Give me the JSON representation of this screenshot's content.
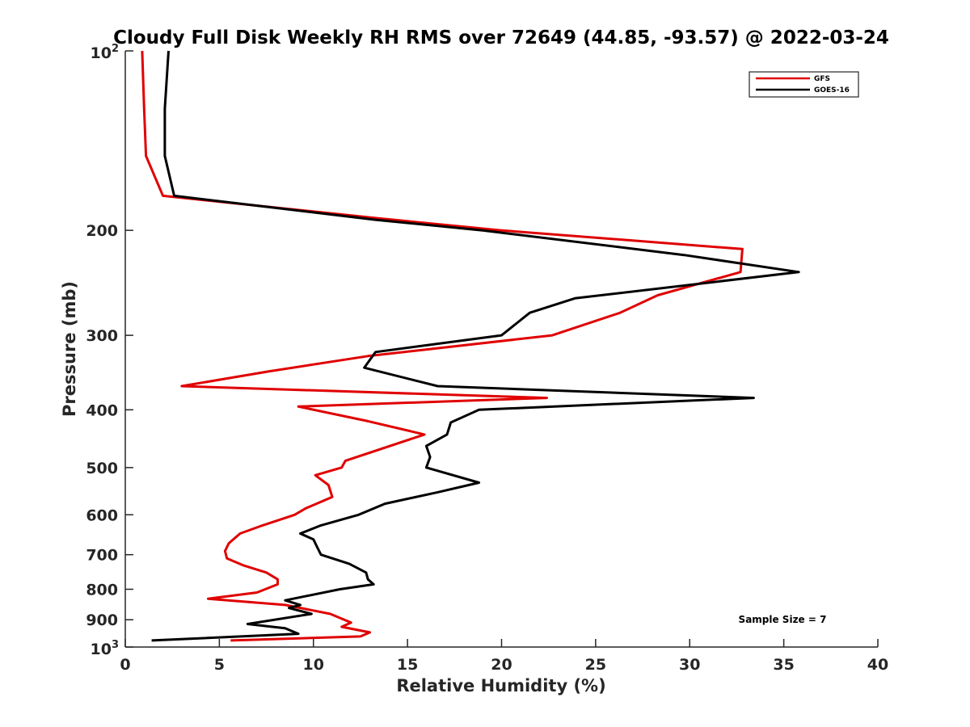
{
  "chart_data": {
    "type": "line",
    "title": "Cloudy Full Disk Weekly RH RMS over 72649 (44.85, -93.57) @ 2022-03-24",
    "xlabel": "Relative Humidity (%)",
    "ylabel": "Pressure (mb)",
    "xlim": [
      0,
      40
    ],
    "ylim": [
      100,
      1000
    ],
    "y_scale": "log",
    "y_reversed": true,
    "grid": false,
    "legend_position": "top-right",
    "x_ticks": [
      "0",
      "5",
      "10",
      "15",
      "20",
      "25",
      "30",
      "35",
      "40"
    ],
    "y_ticks": [
      {
        "value": 100,
        "base": "10",
        "exp": "2"
      },
      {
        "value": 200,
        "label": "200"
      },
      {
        "value": 300,
        "label": "300"
      },
      {
        "value": 400,
        "label": "400"
      },
      {
        "value": 500,
        "label": "500"
      },
      {
        "value": 600,
        "label": "600"
      },
      {
        "value": 700,
        "label": "700"
      },
      {
        "value": 800,
        "label": "800"
      },
      {
        "value": 900,
        "label": "900"
      },
      {
        "value": 1000,
        "base": "10",
        "exp": "3"
      }
    ],
    "annotation": "Sample Size = 7",
    "series": [
      {
        "name": "GFS",
        "color": "#e00000",
        "points": [
          [
            0.9,
            100
          ],
          [
            1.0,
            125
          ],
          [
            1.1,
            150
          ],
          [
            2.0,
            175
          ],
          [
            13.5,
            191
          ],
          [
            20.0,
            200
          ],
          [
            32.8,
            215
          ],
          [
            32.7,
            235
          ],
          [
            28.3,
            257
          ],
          [
            26.3,
            275
          ],
          [
            22.7,
            300
          ],
          [
            12.9,
            325
          ],
          [
            7.6,
            345
          ],
          [
            3.0,
            365
          ],
          [
            22.4,
            382
          ],
          [
            9.2,
            395
          ],
          [
            12.9,
            418
          ],
          [
            15.9,
            440
          ],
          [
            11.7,
            487
          ],
          [
            11.5,
            500
          ],
          [
            10.1,
            515
          ],
          [
            10.8,
            535
          ],
          [
            11.0,
            560
          ],
          [
            9.6,
            585
          ],
          [
            9.0,
            600
          ],
          [
            7.3,
            625
          ],
          [
            6.1,
            645
          ],
          [
            5.5,
            670
          ],
          [
            5.3,
            690
          ],
          [
            5.4,
            710
          ],
          [
            6.3,
            730
          ],
          [
            7.5,
            750
          ],
          [
            8.1,
            770
          ],
          [
            8.1,
            785
          ],
          [
            7.0,
            810
          ],
          [
            4.4,
            830
          ],
          [
            8.5,
            850
          ],
          [
            10.9,
            880
          ],
          [
            12.0,
            910
          ],
          [
            11.5,
            925
          ],
          [
            13.0,
            945
          ],
          [
            12.5,
            960
          ],
          [
            5.6,
            975
          ]
        ]
      },
      {
        "name": "GOES-16",
        "color": "#000000",
        "points": [
          [
            2.3,
            100
          ],
          [
            2.1,
            125
          ],
          [
            2.1,
            150
          ],
          [
            2.6,
            175
          ],
          [
            13.3,
            192
          ],
          [
            19.0,
            200
          ],
          [
            29.7,
            220
          ],
          [
            35.8,
            235
          ],
          [
            23.9,
            260
          ],
          [
            21.5,
            275
          ],
          [
            20.0,
            300
          ],
          [
            13.3,
            320
          ],
          [
            12.7,
            340
          ],
          [
            16.6,
            365
          ],
          [
            33.4,
            382
          ],
          [
            18.8,
            400
          ],
          [
            17.3,
            420
          ],
          [
            17.1,
            440
          ],
          [
            16.0,
            460
          ],
          [
            16.2,
            480
          ],
          [
            16.0,
            500
          ],
          [
            18.8,
            530
          ],
          [
            16.6,
            550
          ],
          [
            13.8,
            575
          ],
          [
            12.4,
            600
          ],
          [
            10.4,
            625
          ],
          [
            9.3,
            645
          ],
          [
            10.0,
            660
          ],
          [
            10.2,
            680
          ],
          [
            10.4,
            700
          ],
          [
            11.9,
            725
          ],
          [
            12.8,
            750
          ],
          [
            12.9,
            770
          ],
          [
            13.2,
            785
          ],
          [
            11.4,
            800
          ],
          [
            8.5,
            835
          ],
          [
            9.3,
            850
          ],
          [
            8.7,
            860
          ],
          [
            9.9,
            880
          ],
          [
            6.5,
            915
          ],
          [
            8.5,
            930
          ],
          [
            9.2,
            950
          ],
          [
            1.4,
            975
          ]
        ]
      }
    ]
  }
}
